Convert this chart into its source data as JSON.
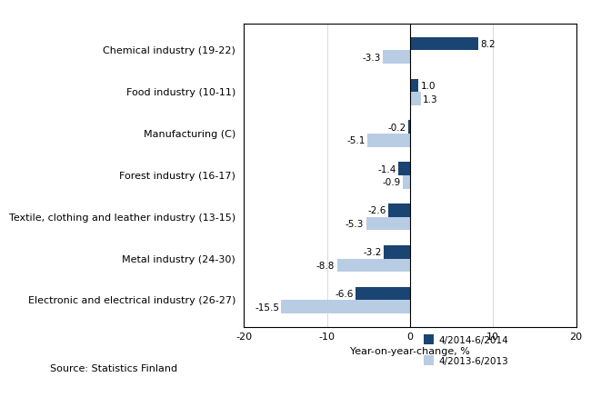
{
  "categories": [
    "Electronic and electrical industry (26-27)",
    "Metal industry (24-30)",
    "Textile, clothing and leather industry (13-15)",
    "Forest industry (16-17)",
    "Manufacturing (C)",
    "Food industry (10-11)",
    "Chemical industry (19-22)"
  ],
  "series_2014": [
    -6.6,
    -3.2,
    -2.6,
    -1.4,
    -0.2,
    1.0,
    8.2
  ],
  "series_2013": [
    -15.5,
    -8.8,
    -5.3,
    -0.9,
    -5.1,
    1.3,
    -3.3
  ],
  "color_2014": "#1a4472",
  "color_2013": "#b8cce4",
  "xlabel": "Year-on-year-change, %",
  "xlim": [
    -20,
    20
  ],
  "xticks": [
    -20,
    -10,
    0,
    10,
    20
  ],
  "legend_2014": "4/2014-6/2014",
  "legend_2013": "4/2013-6/2013",
  "source_text": "Source: Statistics Finland",
  "bar_height": 0.32,
  "label_fontsize": 8,
  "tick_fontsize": 8,
  "value_fontsize": 7.5,
  "legend_fontsize": 7.5,
  "source_fontsize": 8
}
